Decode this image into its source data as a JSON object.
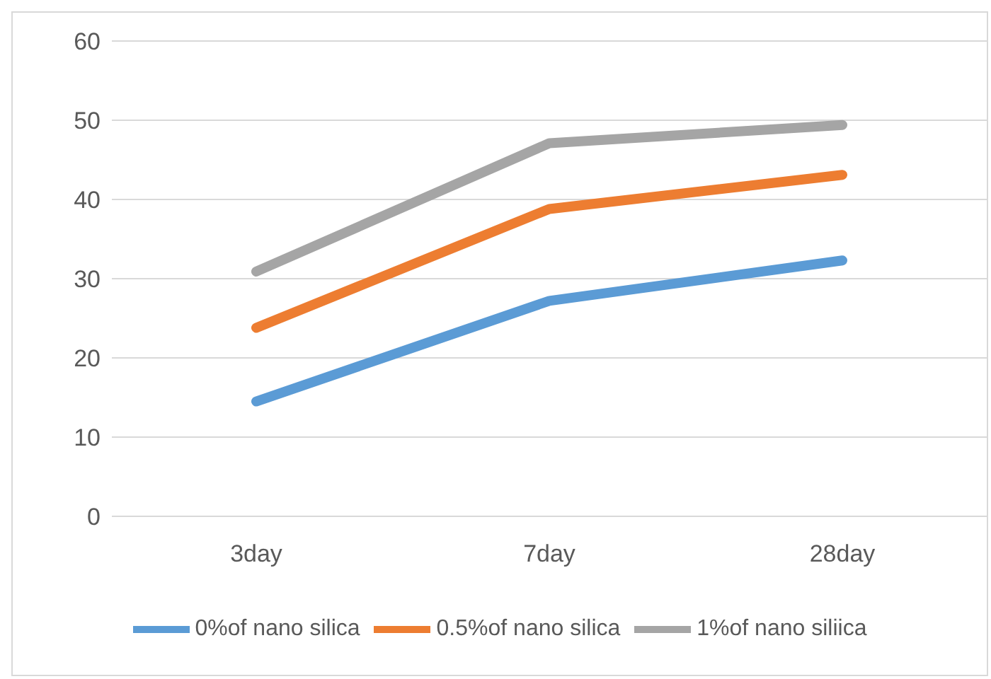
{
  "chart_data": {
    "type": "line",
    "categories": [
      "3day",
      "7day",
      "28day"
    ],
    "series": [
      {
        "name": "0%of nano silica",
        "color": "#5b9bd5",
        "values": [
          14.5,
          27.2,
          32.3
        ]
      },
      {
        "name": "0.5%of nano silica",
        "color": "#ed7d31",
        "values": [
          23.8,
          38.8,
          43.1
        ]
      },
      {
        "name": "1%of nano siliica",
        "color": "#a5a5a5",
        "values": [
          30.9,
          47.1,
          49.4
        ]
      }
    ],
    "ylim": [
      0,
      60
    ],
    "yticks": [
      0,
      10,
      20,
      30,
      40,
      50,
      60
    ],
    "grid": "y",
    "legend": "bottom",
    "marker": "none",
    "line_style": "solid"
  }
}
